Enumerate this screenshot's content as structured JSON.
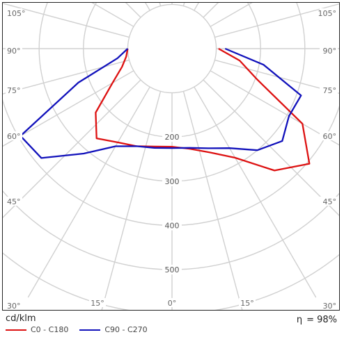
{
  "chart_data": {
    "type": "polar",
    "title": "",
    "unit_label": "cd/klm",
    "efficiency": {
      "symbol": "η",
      "value": "98%"
    },
    "radial_axis": {
      "range": [
        0,
        650
      ],
      "ticks": [
        200,
        300,
        400,
        500
      ],
      "grid": [
        100,
        200,
        300,
        400,
        500,
        600
      ]
    },
    "angle_labels": {
      "left": [
        "105°",
        "90°",
        "75°",
        "60°",
        "45°",
        "30°"
      ],
      "right": [
        "105°",
        "90°",
        "75°",
        "60°",
        "45°",
        "30°"
      ],
      "bottom": [
        "30°",
        "15°",
        "0°",
        "15°",
        "30°"
      ]
    },
    "series": [
      {
        "name": "C0 - C180",
        "color": "#dd1111",
        "angles": [
          -90,
          -80,
          -70,
          -60,
          -50,
          -40,
          -30,
          -20,
          -10,
          0,
          10,
          20,
          30,
          40,
          50,
          60,
          70,
          80,
          90
        ],
        "values": [
          100,
          105,
          120,
          155,
          225,
          265,
          245,
          235,
          225,
          222,
          230,
          250,
          285,
          360,
          405,
          340,
          205,
          155,
          105
        ]
      },
      {
        "name": "C90 - C270",
        "color": "#1111bb",
        "angles": [
          -90,
          -80,
          -70,
          -60,
          -50,
          -40,
          -30,
          -20,
          -10,
          0,
          10,
          20,
          30,
          40,
          50,
          60,
          70,
          80,
          90
        ],
        "values": [
          100,
          125,
          225,
          395,
          385,
          310,
          255,
          235,
          228,
          225,
          228,
          240,
          260,
          300,
          325,
          305,
          310,
          210,
          120
        ]
      }
    ],
    "legend_position": "bottom-left",
    "grid": true
  }
}
